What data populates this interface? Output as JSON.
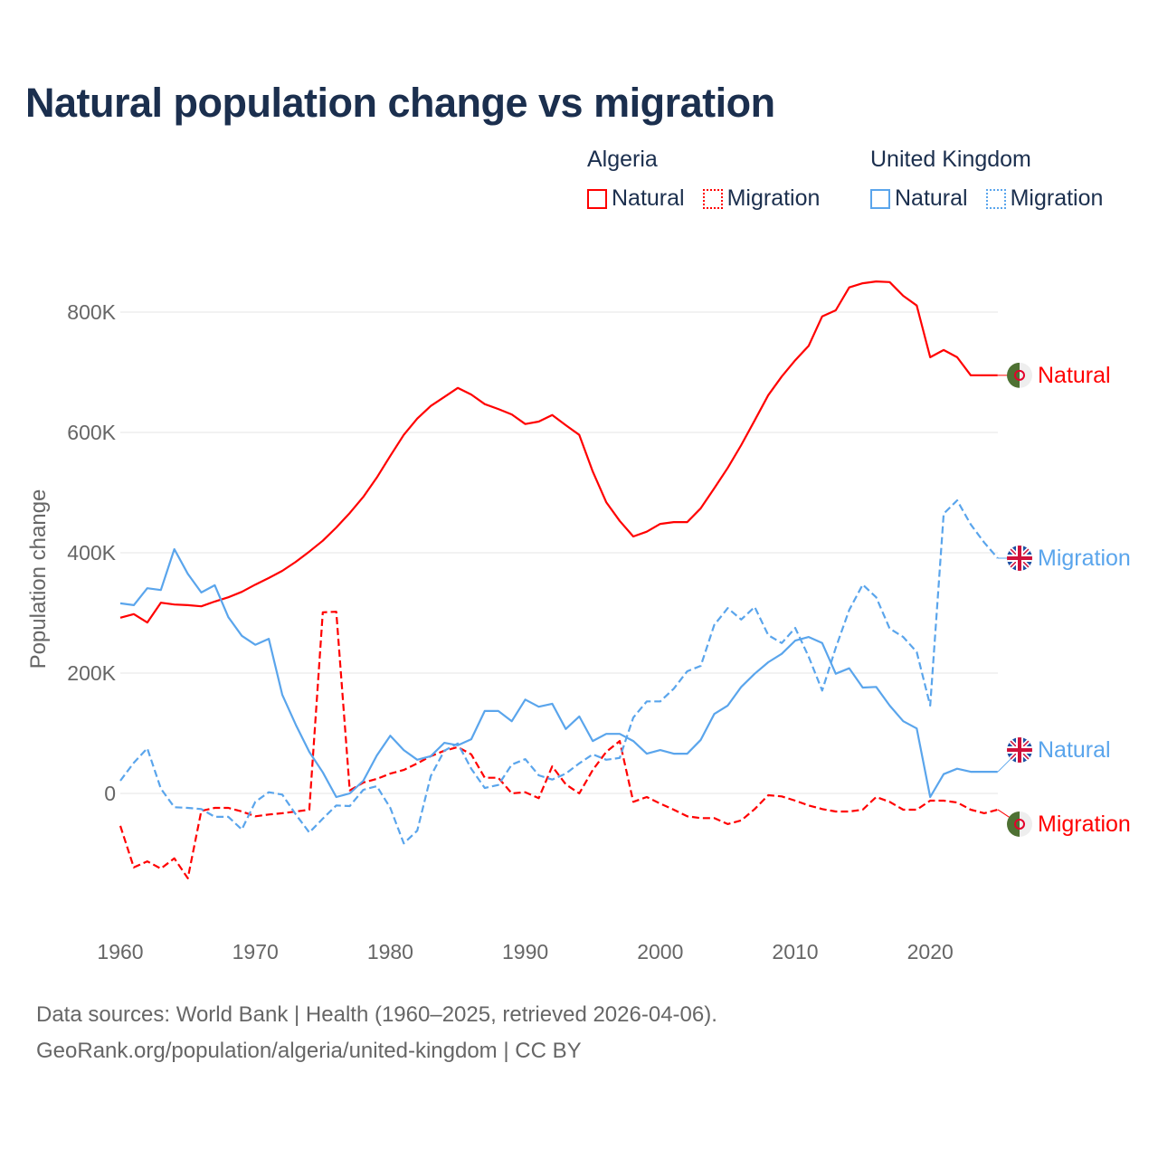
{
  "title": "Natural population change vs migration",
  "legend": {
    "groups": [
      {
        "name": "Algeria",
        "items": [
          {
            "label": "Natural",
            "style": "solid",
            "color": "#ff0000"
          },
          {
            "label": "Migration",
            "style": "dotted",
            "color": "#ff0000"
          }
        ]
      },
      {
        "name": "United Kingdom",
        "items": [
          {
            "label": "Natural",
            "style": "solid",
            "color": "#5aa5ec"
          },
          {
            "label": "Migration",
            "style": "dotted",
            "color": "#5aa5ec"
          }
        ]
      }
    ]
  },
  "footer": {
    "line1": "Data sources: World Bank | Health (1960–2025, retrieved 2026-04-06).",
    "line2": "GeoRank.org/population/algeria/united-kingdom | CC BY"
  },
  "chart_data": {
    "type": "line",
    "title": "Natural population change vs migration",
    "xlabel": "",
    "ylabel": "Population change",
    "xlim": [
      1960,
      2025
    ],
    "ylim": [
      -200000,
      900000
    ],
    "x_ticks": [
      1960,
      1970,
      1980,
      1990,
      2000,
      2010,
      2020
    ],
    "y_ticks": [
      0,
      200000,
      400000,
      600000,
      800000
    ],
    "y_tick_labels": [
      "0",
      "200K",
      "400K",
      "600K",
      "800K"
    ],
    "grid": true,
    "legend_position": "top-right",
    "x_start": 1960,
    "series": [
      {
        "name": "Algeria Natural",
        "end_label": "Natural",
        "flag": "algeria",
        "color": "#ff0000",
        "dash": false,
        "values_k": [
          292,
          298,
          284,
          317,
          314,
          313,
          311,
          319,
          326,
          335,
          347,
          358,
          370,
          385,
          402,
          420,
          442,
          466,
          493,
          525,
          561,
          596,
          623,
          644,
          659,
          674,
          663,
          647,
          639,
          630,
          614,
          618,
          629,
          612,
          596,
          535,
          484,
          453,
          427,
          435,
          448,
          451,
          451,
          474,
          507,
          541,
          579,
          620,
          662,
          693,
          720,
          744,
          793,
          803,
          841,
          848,
          851,
          850,
          827,
          811,
          725,
          737,
          725,
          695,
          695,
          695
        ]
      },
      {
        "name": "Algeria Migration",
        "end_label": "Migration",
        "flag": "algeria",
        "color": "#ff0000",
        "dash": true,
        "values_k": [
          -54,
          -123,
          -113,
          -125,
          -108,
          -141,
          -29,
          -24,
          -24,
          -30,
          -38,
          -35,
          -33,
          -30,
          -27,
          301,
          302,
          5,
          18,
          24,
          33,
          39,
          50,
          62,
          71,
          77,
          65,
          26,
          26,
          0,
          2,
          -8,
          45,
          15,
          0,
          39,
          69,
          87,
          -14,
          -6,
          -17,
          -27,
          -38,
          -41,
          -41,
          -51,
          -45,
          -26,
          -3,
          -5,
          -12,
          -20,
          -26,
          -30,
          -30,
          -27,
          -6,
          -14,
          -27,
          -27,
          -12,
          -12,
          -15,
          -27,
          -33,
          -27
        ]
      },
      {
        "name": "United Kingdom Natural",
        "end_label": "Natural",
        "flag": "uk",
        "color": "#5aa5ec",
        "dash": false,
        "values_k": [
          316,
          313,
          341,
          338,
          406,
          365,
          334,
          346,
          293,
          262,
          247,
          257,
          164,
          114,
          69,
          35,
          -6,
          0,
          21,
          63,
          96,
          72,
          56,
          62,
          84,
          80,
          90,
          137,
          137,
          120,
          156,
          144,
          149,
          107,
          128,
          87,
          99,
          99,
          87,
          66,
          72,
          66,
          66,
          89,
          132,
          146,
          177,
          199,
          218,
          232,
          254,
          260,
          250,
          199,
          208,
          176,
          177,
          146,
          120,
          108,
          -6,
          32,
          41,
          36,
          36,
          36
        ]
      },
      {
        "name": "United Kingdom Migration",
        "end_label": "Migration",
        "flag": "uk",
        "color": "#5aa5ec",
        "dash": true,
        "values_k": [
          21,
          51,
          75,
          8,
          -23,
          -24,
          -26,
          -39,
          -39,
          -60,
          -14,
          2,
          -2,
          -35,
          -65,
          -42,
          -20,
          -21,
          6,
          12,
          -24,
          -83,
          -62,
          29,
          71,
          83,
          41,
          9,
          14,
          48,
          57,
          30,
          23,
          33,
          50,
          65,
          56,
          59,
          126,
          153,
          153,
          174,
          203,
          212,
          280,
          308,
          289,
          310,
          263,
          250,
          275,
          227,
          171,
          242,
          305,
          347,
          326,
          274,
          260,
          235,
          146,
          465,
          487,
          447,
          417,
          391
        ]
      }
    ]
  }
}
